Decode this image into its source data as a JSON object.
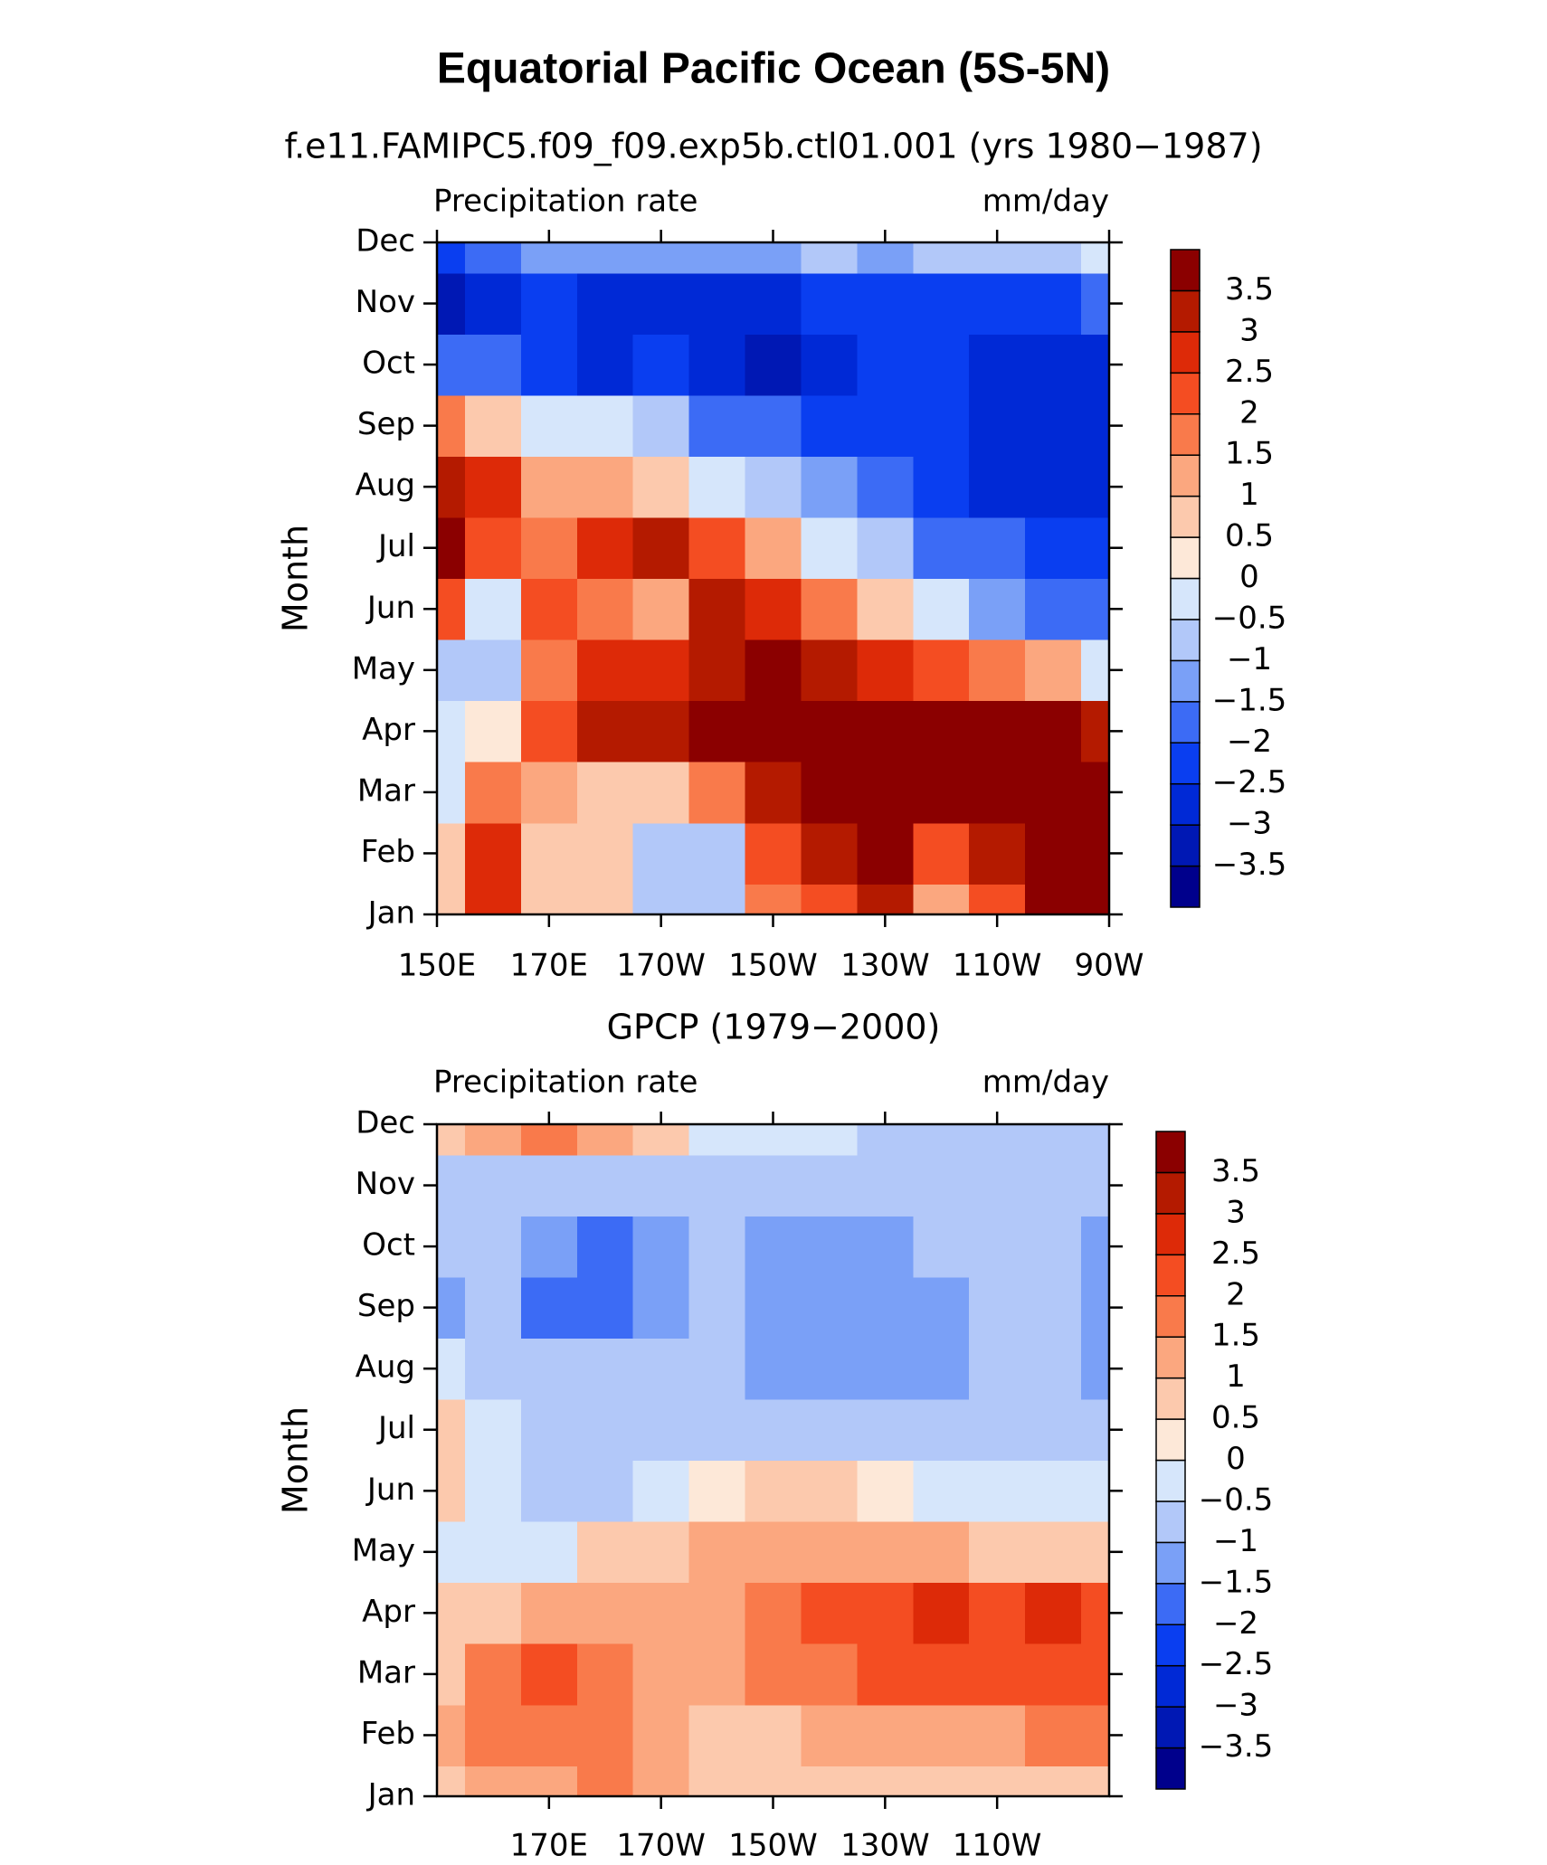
{
  "title": "Equatorial Pacific Ocean (5S-5N)",
  "chart_data": [
    {
      "type": "contour",
      "subtitle": "f.e11.FAMIPC5.f09_f09.exp5b.ctl01.001 (yrs 1980−1987)",
      "left_label": "Precipitation rate",
      "right_label": "mm/day",
      "ylabel": "Month",
      "x": [
        150,
        160,
        170,
        180,
        190,
        200,
        210,
        220,
        230,
        240,
        250,
        260,
        270
      ],
      "xlim": [
        150,
        270
      ],
      "xticks": [
        {
          "value": 150,
          "label": "150E"
        },
        {
          "value": 170,
          "label": "170E"
        },
        {
          "value": 190,
          "label": "170W"
        },
        {
          "value": 210,
          "label": "150W"
        },
        {
          "value": 230,
          "label": "130W"
        },
        {
          "value": 250,
          "label": "110W"
        },
        {
          "value": 270,
          "label": "90W"
        }
      ],
      "categories": [
        "Jan",
        "Feb",
        "Mar",
        "Apr",
        "May",
        "Jun",
        "Jul",
        "Aug",
        "Sep",
        "Oct",
        "Nov",
        "Dec"
      ],
      "values": [
        [
          0.5,
          2.5,
          0.5,
          0.5,
          -1,
          -1,
          1.5,
          2,
          3,
          1,
          2,
          4,
          4
        ],
        [
          0.5,
          2.5,
          0.5,
          0.5,
          -1,
          -1,
          2,
          3,
          4,
          2,
          3,
          4,
          4
        ],
        [
          -0.5,
          1.5,
          1,
          0.5,
          0.5,
          1.5,
          3,
          3.5,
          4,
          4,
          4,
          4,
          4
        ],
        [
          -0.5,
          0,
          2,
          3,
          3,
          4,
          4,
          4,
          4,
          4,
          4,
          4,
          3
        ],
        [
          -1,
          -1,
          1.5,
          2.5,
          2.5,
          3,
          3.5,
          3,
          2.5,
          2,
          1.5,
          1,
          -0.5
        ],
        [
          2,
          -0.5,
          2,
          1.5,
          1,
          3,
          2.5,
          1.5,
          0.5,
          -0.5,
          -1.5,
          -2,
          -2
        ],
        [
          3.5,
          2,
          1.5,
          2.5,
          3,
          2,
          1,
          -0.5,
          -1,
          -2,
          -2,
          -2.5,
          -2.5
        ],
        [
          3,
          2.5,
          1,
          1,
          0.5,
          -0.5,
          -1,
          -1.5,
          -2,
          -2.5,
          -3,
          -3,
          -3
        ],
        [
          1.5,
          0.5,
          -0.5,
          -0.5,
          -1,
          -2,
          -2,
          -2.5,
          -2.5,
          -2.5,
          -3,
          -3,
          -3
        ],
        [
          -2,
          -2,
          -2.5,
          -3,
          -2.5,
          -3,
          -3.5,
          -3,
          -2.5,
          -2.5,
          -3,
          -3,
          -3
        ],
        [
          -3.5,
          -3,
          -2.5,
          -3,
          -3,
          -3,
          -3,
          -2.5,
          -2.5,
          -2.5,
          -2.5,
          -2.5,
          -2
        ],
        [
          -2.5,
          -2,
          -1.5,
          -1.5,
          -1.5,
          -1.5,
          -1.5,
          -1,
          -1.5,
          -1,
          -1,
          -1,
          -0.5
        ]
      ],
      "levels": [
        {
          "value": -3.5,
          "label": "−3.5"
        },
        {
          "value": -3,
          "label": "−3"
        },
        {
          "value": -2.5,
          "label": "−2.5"
        },
        {
          "value": -2,
          "label": "−2"
        },
        {
          "value": -1.5,
          "label": "−1.5"
        },
        {
          "value": -1,
          "label": "−1"
        },
        {
          "value": -0.5,
          "label": "−0.5"
        },
        0,
        0.5,
        1,
        1.5,
        2,
        2.5,
        3,
        3.5
      ],
      "colors": [
        "#00008c",
        "#0018b4",
        "#0029d6",
        "#0a3ef0",
        "#3c6bf5",
        "#7aa0f7",
        "#b2c8f9",
        "#d6e6fb",
        "#fde8d8",
        "#fcc9ad",
        "#fba77f",
        "#f97a4b",
        "#f44d22",
        "#dd2a08",
        "#b41a00",
        "#8b0000"
      ]
    },
    {
      "type": "contour",
      "subtitle": "GPCP (1979−2000)",
      "left_label": "Precipitation rate",
      "right_label": "mm/day",
      "ylabel": "Month",
      "x": [
        150,
        160,
        170,
        180,
        190,
        200,
        210,
        220,
        230,
        240,
        250,
        260,
        270
      ],
      "xlim": [
        150,
        270
      ],
      "xticks": [
        {
          "value": 170,
          "label": "170E"
        },
        {
          "value": 190,
          "label": "170W"
        },
        {
          "value": 210,
          "label": "150W"
        },
        {
          "value": 230,
          "label": "130W"
        },
        {
          "value": 250,
          "label": "110W"
        }
      ],
      "categories": [
        "Jan",
        "Feb",
        "Mar",
        "Apr",
        "May",
        "Jun",
        "Jul",
        "Aug",
        "Sep",
        "Oct",
        "Nov",
        "Dec"
      ],
      "values": [
        [
          0.5,
          1,
          1,
          1.5,
          1,
          0.5,
          0.5,
          0.5,
          0.5,
          0.5,
          0.5,
          0.5,
          0.5
        ],
        [
          1,
          1.5,
          1.5,
          1.5,
          1,
          0.5,
          0.5,
          1,
          1,
          1,
          1,
          1.5,
          1.5
        ],
        [
          0.5,
          1.5,
          2,
          1.5,
          1,
          1,
          1.5,
          1.5,
          2,
          2,
          2,
          2,
          2
        ],
        [
          0.5,
          0.5,
          1,
          1,
          1,
          1,
          1.5,
          2,
          2,
          2.5,
          2,
          2.5,
          2
        ],
        [
          -0.5,
          -0.5,
          -0.5,
          0.5,
          0.5,
          1,
          1,
          1,
          1,
          1,
          0.5,
          0.5,
          0.5
        ],
        [
          0.5,
          -0.5,
          -1,
          -1,
          -0.5,
          0,
          0.5,
          0.5,
          0,
          -0.5,
          -0.5,
          -0.5,
          -0.5
        ],
        [
          0.5,
          -0.5,
          -1,
          -1,
          -1,
          -1,
          -1,
          -1,
          -1,
          -1,
          -1,
          -1,
          -1
        ],
        [
          -0.5,
          -1,
          -1,
          -1,
          -1,
          -1,
          -1.5,
          -1.5,
          -1.5,
          -1.5,
          -1,
          -1,
          -1.5
        ],
        [
          -1.5,
          -1,
          -2,
          -2,
          -1.5,
          -1,
          -1.5,
          -1.5,
          -1.5,
          -1.5,
          -1,
          -1,
          -1.5
        ],
        [
          -1,
          -1,
          -1.5,
          -2,
          -1.5,
          -1,
          -1.5,
          -1.5,
          -1.5,
          -1,
          -1,
          -1,
          -1.5
        ],
        [
          -1,
          -1,
          -1,
          -1,
          -1,
          -1,
          -1,
          -1,
          -1,
          -1,
          -1,
          -1,
          -1
        ],
        [
          0.5,
          1,
          1.5,
          1,
          0.5,
          -0.5,
          -0.5,
          -0.5,
          -1,
          -1,
          -1,
          -1,
          -1
        ]
      ],
      "levels": [
        {
          "value": -3.5,
          "label": "−3.5"
        },
        {
          "value": -3,
          "label": "−3"
        },
        {
          "value": -2.5,
          "label": "−2.5"
        },
        {
          "value": -2,
          "label": "−2"
        },
        {
          "value": -1.5,
          "label": "−1.5"
        },
        {
          "value": -1,
          "label": "−1"
        },
        {
          "value": -0.5,
          "label": "−0.5"
        },
        0,
        0.5,
        1,
        1.5,
        2,
        2.5,
        3,
        3.5
      ],
      "colors": [
        "#00008c",
        "#0018b4",
        "#0029d6",
        "#0a3ef0",
        "#3c6bf5",
        "#7aa0f7",
        "#b2c8f9",
        "#d6e6fb",
        "#fde8d8",
        "#fcc9ad",
        "#fba77f",
        "#f97a4b",
        "#f44d22",
        "#dd2a08",
        "#b41a00",
        "#8b0000"
      ]
    }
  ]
}
